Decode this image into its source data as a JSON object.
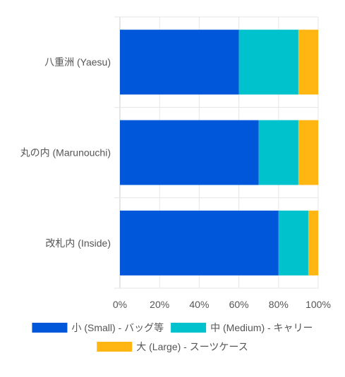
{
  "chart_data": {
    "type": "bar",
    "orientation": "horizontal",
    "stacked": true,
    "percent": true,
    "categories": [
      "八重洲 (Yaesu)",
      "丸の内 (Marunouchi)",
      "改札内 (Inside)"
    ],
    "series": [
      {
        "name": "小 (Small) - バッグ等",
        "color": "#0057d9",
        "values": [
          60,
          70,
          80
        ]
      },
      {
        "name": "中 (Medium) - キャリー",
        "color": "#00c2cc",
        "values": [
          30,
          20,
          15
        ]
      },
      {
        "name": "大 (Large) - スーツケース",
        "color": "#ffb612",
        "values": [
          10,
          10,
          5
        ]
      }
    ],
    "xlim": [
      0,
      100
    ],
    "xticks": [
      "0%",
      "20%",
      "40%",
      "60%",
      "80%",
      "100%"
    ],
    "grid": true,
    "legend_position": "bottom"
  }
}
